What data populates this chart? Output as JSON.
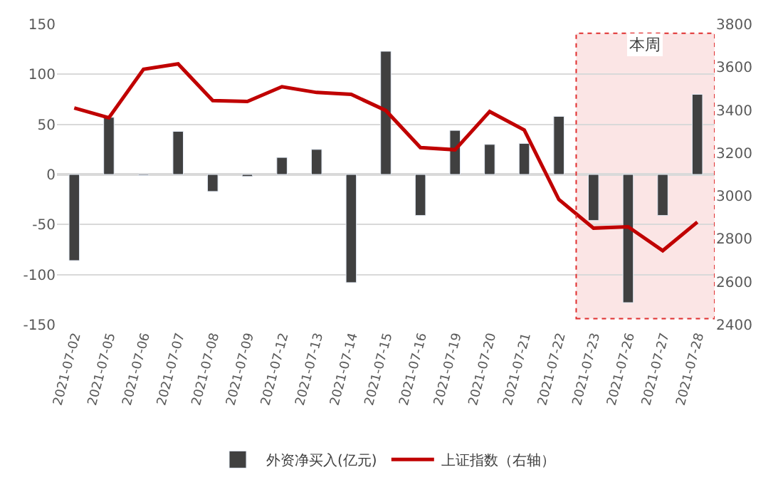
{
  "chart_data": {
    "type": "bar",
    "categories": [
      "2021-07-02",
      "2021-07-05",
      "2021-07-06",
      "2021-07-07",
      "2021-07-08",
      "2021-07-09",
      "2021-07-12",
      "2021-07-13",
      "2021-07-14",
      "2021-07-15",
      "2021-07-16",
      "2021-07-19",
      "2021-07-20",
      "2021-07-21",
      "2021-07-22",
      "2021-07-23",
      "2021-07-26",
      "2021-07-27",
      "2021-07-28"
    ],
    "series": [
      {
        "name": "外资净买入(亿元)",
        "color": "#404040",
        "values": [
          -86,
          57,
          -1,
          43,
          -17,
          -2,
          17,
          25,
          -108,
          123,
          -41,
          44,
          30,
          31,
          58,
          -46,
          -128,
          -41,
          80
        ]
      },
      {
        "name": "上证指数（右轴）",
        "color": "#c00000",
        "type": "line",
        "axis": "y2",
        "values": [
          3410,
          3364,
          3590,
          3615,
          3444,
          3440,
          3509,
          3482,
          3473,
          3398,
          3225,
          3215,
          3393,
          3307,
          2983,
          2850,
          2856,
          2745,
          2878
        ]
      }
    ],
    "ylim": [
      -150,
      150
    ],
    "yticks": [
      -150,
      -100,
      -50,
      0,
      50,
      100,
      150
    ],
    "y2lim": [
      2400,
      3800
    ],
    "y2ticks": [
      2400,
      2600,
      2800,
      3000,
      3200,
      3400,
      3600,
      3800
    ],
    "bands": [
      {
        "axis": "x",
        "from": "2021-07-23",
        "to": "2021-07-28",
        "label": "本周",
        "color": "#e03030"
      }
    ],
    "grid": "y",
    "legend": "bottom",
    "marker": "none",
    "line_style": "solid"
  }
}
